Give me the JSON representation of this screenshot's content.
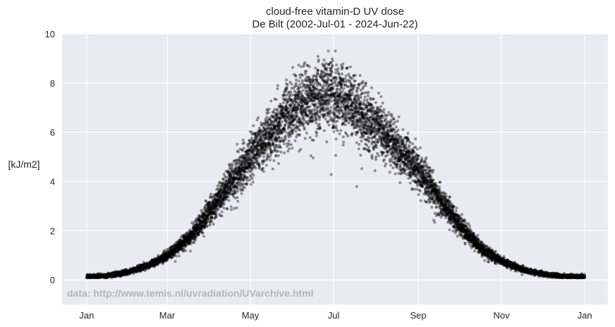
{
  "chart_data": {
    "type": "scatter",
    "title": "cloud-free vitamin-D UV dose",
    "subtitle": "De Bilt (2002-Jul-01 - 2024-Jun-22)",
    "xlabel": "",
    "ylabel": "[kJ/m2]",
    "xlim_day_of_year": [
      -18,
      382
    ],
    "ylim": [
      -1,
      10
    ],
    "grid": true,
    "xticks": [
      {
        "label": "Jan",
        "day": 0
      },
      {
        "label": "Mar",
        "day": 59
      },
      {
        "label": "May",
        "day": 120
      },
      {
        "label": "Jul",
        "day": 181
      },
      {
        "label": "Sep",
        "day": 243
      },
      {
        "label": "Nov",
        "day": 304
      },
      {
        "label": "Jan",
        "day": 365
      }
    ],
    "yticks": [
      0,
      2,
      4,
      6,
      8,
      10
    ],
    "annotation": "data: http://www.temis.nl/uvradiation/UVarchive.html",
    "point_color": "#000000",
    "point_alpha": 0.4,
    "years_of_daily_points": 22,
    "median_curve": {
      "day": [
        0,
        15,
        31,
        45,
        59,
        75,
        90,
        105,
        120,
        135,
        150,
        165,
        175,
        181,
        195,
        210,
        225,
        243,
        258,
        273,
        288,
        304,
        320,
        335,
        350,
        365
      ],
      "value": [
        0.12,
        0.17,
        0.33,
        0.6,
        1.0,
        1.7,
        2.8,
        3.9,
        5.0,
        6.0,
        6.9,
        7.4,
        7.6,
        7.5,
        7.0,
        6.3,
        5.5,
        4.4,
        3.3,
        2.2,
        1.3,
        0.75,
        0.4,
        0.22,
        0.14,
        0.12
      ]
    },
    "relative_spread": 0.09,
    "max_observed": 9.3
  }
}
